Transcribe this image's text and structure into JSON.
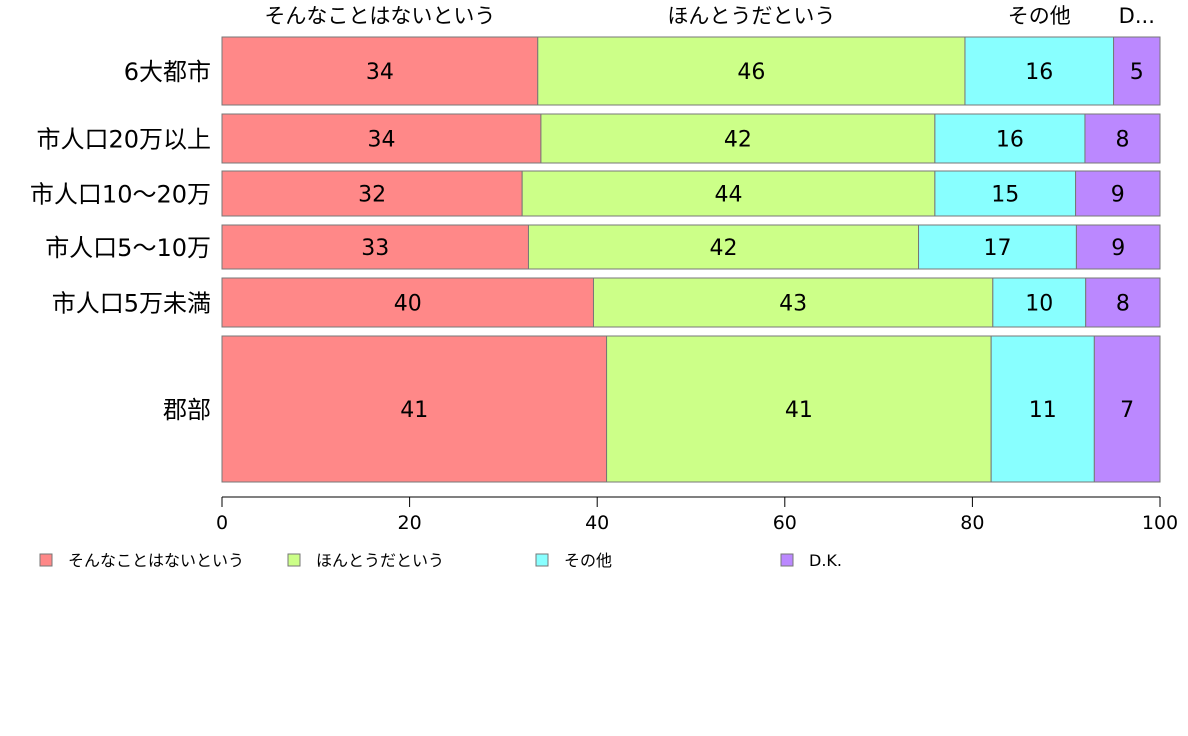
{
  "chart_data": {
    "type": "bar",
    "orientation": "horizontal",
    "stacked": true,
    "variable_width": true,
    "categories": [
      "6大都市",
      "市人口20万以上",
      "市人口10〜20万",
      "市人口5〜10万",
      "市人口5万未満",
      "郡部"
    ],
    "series": [
      {
        "name": "そんなことはないという",
        "color": "#ff8888",
        "values": [
          34,
          34,
          32,
          33,
          40,
          41
        ]
      },
      {
        "name": "ほんとうだという",
        "color": "#ccff88",
        "values": [
          46,
          42,
          44,
          42,
          43,
          41
        ]
      },
      {
        "name": "その他",
        "color": "#88ffff",
        "values": [
          16,
          16,
          15,
          17,
          10,
          11
        ]
      },
      {
        "name": "D.K.",
        "color": "#bb88ff",
        "values": [
          5,
          8,
          9,
          9,
          8,
          7
        ]
      }
    ],
    "top_labels": [
      "そんなことはないという",
      "ほんとうだという",
      "その他",
      "D..."
    ],
    "xlim": [
      0,
      100
    ],
    "xticks": [
      0,
      20,
      40,
      60,
      80,
      100
    ],
    "grid": false,
    "legend_position": "bottom"
  }
}
